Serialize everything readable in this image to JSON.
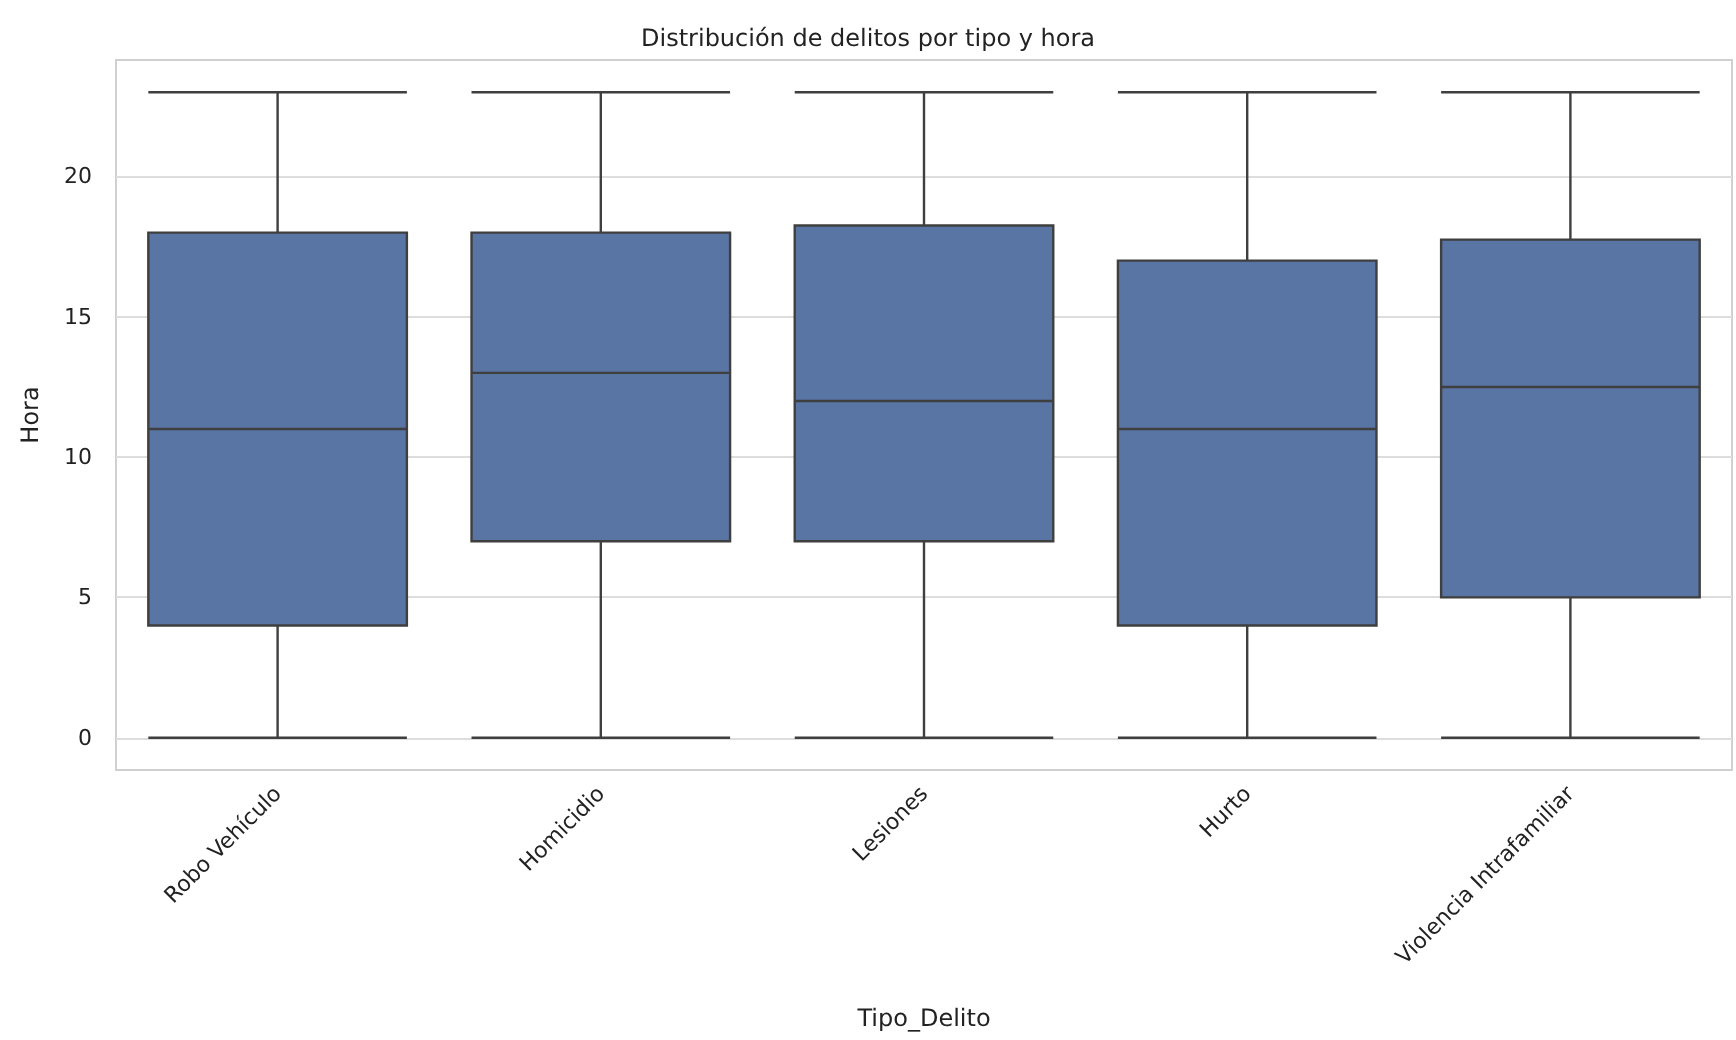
{
  "chart_data": {
    "type": "box",
    "title": "Distribución de delitos por tipo y hora",
    "xlabel": "Tipo_Delito",
    "ylabel": "Hora",
    "categories": [
      "Robo Vehículo",
      "Homicidio",
      "Lesiones",
      "Hurto",
      "Violencia Intrafamiliar"
    ],
    "series": [
      {
        "color": "#5975a4",
        "boxes": [
          {
            "low": 0,
            "q1": 4,
            "median": 11,
            "q3": 18,
            "high": 23
          },
          {
            "low": 0,
            "q1": 7,
            "median": 13,
            "q3": 18,
            "high": 23
          },
          {
            "low": 0,
            "q1": 7,
            "median": 12,
            "q3": 18.25,
            "high": 23
          },
          {
            "low": 0,
            "q1": 4,
            "median": 11,
            "q3": 17,
            "high": 23
          },
          {
            "low": 0,
            "q1": 5,
            "median": 12.5,
            "q3": 17.75,
            "high": 23
          }
        ]
      }
    ],
    "ylim": [
      -1.15,
      24.15
    ],
    "yticks": [
      0,
      5,
      10,
      15,
      20
    ],
    "grid": "y"
  }
}
